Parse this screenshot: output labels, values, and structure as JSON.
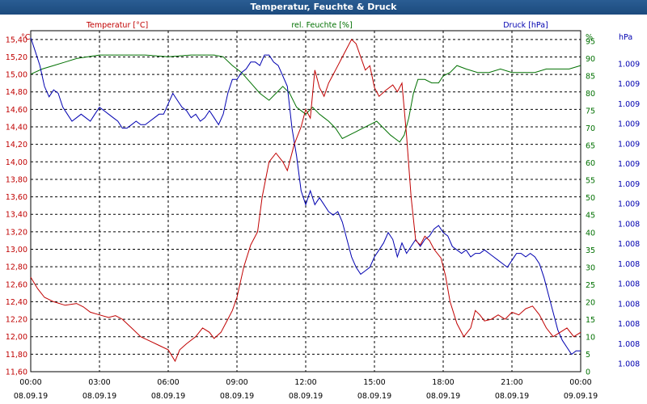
{
  "window": {
    "title": "Temperatur, Feuchte & Druck"
  },
  "colors": {
    "temperature": "#c00000",
    "humidity": "#007000",
    "pressure": "#0000b0",
    "grid": "#000000"
  },
  "chart_data": {
    "type": "line",
    "x_ticks": [
      {
        "time": "00:00",
        "date": "08.09.19"
      },
      {
        "time": "03:00",
        "date": "08.09.19"
      },
      {
        "time": "06:00",
        "date": "08.09.19"
      },
      {
        "time": "09:00",
        "date": "08.09.19"
      },
      {
        "time": "12:00",
        "date": "08.09.19"
      },
      {
        "time": "15:00",
        "date": "08.09.19"
      },
      {
        "time": "18:00",
        "date": "08.09.19"
      },
      {
        "time": "21:00",
        "date": "08.09.19"
      },
      {
        "time": "00:00",
        "date": "09.09.19"
      }
    ],
    "x_range_hours": [
      0,
      24
    ],
    "axes": {
      "left": {
        "title": "Temperatur [°C]",
        "unit": "°C",
        "range": [
          11.6,
          15.5
        ],
        "ticks": [
          "11,60",
          "11,80",
          "12,00",
          "12,20",
          "12,40",
          "12,60",
          "12,80",
          "13,00",
          "13,20",
          "13,40",
          "13,60",
          "13,80",
          "14,00",
          "14,20",
          "14,40",
          "14,60",
          "14,80",
          "15,00",
          "15,20",
          "15,40"
        ]
      },
      "right1": {
        "title": "rel. Feuchte [%]",
        "unit": "%",
        "range": [
          0,
          98
        ],
        "ticks": [
          "0",
          "5",
          "10",
          "15",
          "20",
          "25",
          "30",
          "35",
          "40",
          "45",
          "50",
          "55",
          "60",
          "65",
          "70",
          "75",
          "80",
          "85",
          "90",
          "95"
        ]
      },
      "right2": {
        "title": "Druck [hPa]",
        "unit": "hPa",
        "ticks": [
          "1.008",
          "1.008",
          "1.008",
          "1.008",
          "1.008",
          "1.008",
          "1.008",
          "1.008",
          "1.009",
          "1.009",
          "1.009",
          "1.009",
          "1.009",
          "1.009",
          "1.009",
          "1.009"
        ]
      }
    },
    "grid": true,
    "series": [
      {
        "name": "Temperatur [°C]",
        "points": [
          [
            0,
            12.68
          ],
          [
            0.3,
            12.55
          ],
          [
            0.6,
            12.45
          ],
          [
            1,
            12.4
          ],
          [
            1.5,
            12.36
          ],
          [
            2,
            12.38
          ],
          [
            2.3,
            12.34
          ],
          [
            2.6,
            12.28
          ],
          [
            3,
            12.25
          ],
          [
            3.4,
            12.22
          ],
          [
            3.7,
            12.24
          ],
          [
            4,
            12.2
          ],
          [
            4.4,
            12.1
          ],
          [
            4.8,
            12.0
          ],
          [
            5.2,
            11.95
          ],
          [
            5.6,
            11.9
          ],
          [
            6,
            11.85
          ],
          [
            6.3,
            11.72
          ],
          [
            6.5,
            11.85
          ],
          [
            6.8,
            11.92
          ],
          [
            7.2,
            12.0
          ],
          [
            7.5,
            12.1
          ],
          [
            7.8,
            12.05
          ],
          [
            8.0,
            11.98
          ],
          [
            8.3,
            12.05
          ],
          [
            8.6,
            12.2
          ],
          [
            8.8,
            12.3
          ],
          [
            9.0,
            12.45
          ],
          [
            9.3,
            12.8
          ],
          [
            9.6,
            13.05
          ],
          [
            9.9,
            13.2
          ],
          [
            10.1,
            13.6
          ],
          [
            10.4,
            14.0
          ],
          [
            10.7,
            14.1
          ],
          [
            11.0,
            14.0
          ],
          [
            11.2,
            13.9
          ],
          [
            11.5,
            14.2
          ],
          [
            11.8,
            14.4
          ],
          [
            12.0,
            14.6
          ],
          [
            12.2,
            14.5
          ],
          [
            12.4,
            15.05
          ],
          [
            12.6,
            14.85
          ],
          [
            12.8,
            14.75
          ],
          [
            13.0,
            14.9
          ],
          [
            13.2,
            15.0
          ],
          [
            13.4,
            15.1
          ],
          [
            13.6,
            15.2
          ],
          [
            13.8,
            15.3
          ],
          [
            14.0,
            15.4
          ],
          [
            14.2,
            15.35
          ],
          [
            14.4,
            15.2
          ],
          [
            14.6,
            15.05
          ],
          [
            14.8,
            15.1
          ],
          [
            15.0,
            14.85
          ],
          [
            15.2,
            14.75
          ],
          [
            15.5,
            14.82
          ],
          [
            15.8,
            14.88
          ],
          [
            16.0,
            14.8
          ],
          [
            16.2,
            14.9
          ],
          [
            16.4,
            14.3
          ],
          [
            16.6,
            13.6
          ],
          [
            16.8,
            13.1
          ],
          [
            17.0,
            13.05
          ],
          [
            17.2,
            13.15
          ],
          [
            17.4,
            13.1
          ],
          [
            17.6,
            13.0
          ],
          [
            17.9,
            12.9
          ],
          [
            18.1,
            12.7
          ],
          [
            18.3,
            12.4
          ],
          [
            18.6,
            12.15
          ],
          [
            18.9,
            12.0
          ],
          [
            19.2,
            12.1
          ],
          [
            19.4,
            12.3
          ],
          [
            19.6,
            12.25
          ],
          [
            19.8,
            12.18
          ],
          [
            20.1,
            12.2
          ],
          [
            20.4,
            12.25
          ],
          [
            20.7,
            12.2
          ],
          [
            21.0,
            12.28
          ],
          [
            21.3,
            12.25
          ],
          [
            21.6,
            12.32
          ],
          [
            21.9,
            12.35
          ],
          [
            22.2,
            12.25
          ],
          [
            22.5,
            12.1
          ],
          [
            22.8,
            12.0
          ],
          [
            23.1,
            12.05
          ],
          [
            23.4,
            12.1
          ],
          [
            23.7,
            12.0
          ],
          [
            24.0,
            12.05
          ]
        ]
      },
      {
        "name": "rel. Feuchte [%]",
        "points": [
          [
            0,
            85.5
          ],
          [
            0.5,
            87
          ],
          [
            1,
            88
          ],
          [
            1.5,
            89
          ],
          [
            2,
            90
          ],
          [
            3,
            91
          ],
          [
            4,
            91
          ],
          [
            5,
            91
          ],
          [
            6,
            90.5
          ],
          [
            7,
            91
          ],
          [
            8,
            91
          ],
          [
            8.4,
            90.5
          ],
          [
            8.8,
            88
          ],
          [
            9.2,
            86
          ],
          [
            9.6,
            83
          ],
          [
            10.0,
            80
          ],
          [
            10.4,
            78
          ],
          [
            10.7,
            80
          ],
          [
            11.0,
            82
          ],
          [
            11.3,
            80
          ],
          [
            11.6,
            76
          ],
          [
            12.0,
            74
          ],
          [
            12.3,
            76
          ],
          [
            12.6,
            74
          ],
          [
            12.8,
            73
          ],
          [
            13.0,
            72
          ],
          [
            13.3,
            70
          ],
          [
            13.6,
            67
          ],
          [
            13.9,
            68
          ],
          [
            14.2,
            69
          ],
          [
            14.5,
            70
          ],
          [
            14.8,
            71
          ],
          [
            15.1,
            72
          ],
          [
            15.4,
            70
          ],
          [
            15.7,
            68
          ],
          [
            15.9,
            67
          ],
          [
            16.1,
            66
          ],
          [
            16.3,
            68
          ],
          [
            16.5,
            73
          ],
          [
            16.7,
            80
          ],
          [
            16.9,
            84
          ],
          [
            17.2,
            84
          ],
          [
            17.5,
            83
          ],
          [
            17.8,
            83
          ],
          [
            18.0,
            85
          ],
          [
            18.3,
            86
          ],
          [
            18.6,
            88
          ],
          [
            19.0,
            87
          ],
          [
            19.5,
            86
          ],
          [
            20.0,
            86
          ],
          [
            20.5,
            87
          ],
          [
            21.0,
            86
          ],
          [
            21.5,
            86
          ],
          [
            22.0,
            86
          ],
          [
            22.5,
            87
          ],
          [
            23.0,
            87
          ],
          [
            23.5,
            87
          ],
          [
            24.0,
            88
          ]
        ]
      },
      {
        "name": "Druck [hPa]",
        "points": [
          [
            0,
            96
          ],
          [
            0.2,
            92
          ],
          [
            0.4,
            88
          ],
          [
            0.6,
            82
          ],
          [
            0.8,
            79
          ],
          [
            1.0,
            81
          ],
          [
            1.2,
            80
          ],
          [
            1.4,
            76
          ],
          [
            1.6,
            74
          ],
          [
            1.8,
            72
          ],
          [
            2.0,
            73
          ],
          [
            2.2,
            74
          ],
          [
            2.4,
            73
          ],
          [
            2.6,
            72
          ],
          [
            2.8,
            74
          ],
          [
            3.0,
            76
          ],
          [
            3.2,
            75
          ],
          [
            3.4,
            74
          ],
          [
            3.6,
            73
          ],
          [
            3.8,
            72
          ],
          [
            4.0,
            70
          ],
          [
            4.2,
            70
          ],
          [
            4.4,
            71
          ],
          [
            4.6,
            72
          ],
          [
            4.8,
            71
          ],
          [
            5.0,
            71
          ],
          [
            5.2,
            72
          ],
          [
            5.4,
            73
          ],
          [
            5.6,
            74
          ],
          [
            5.8,
            74
          ],
          [
            6.0,
            77
          ],
          [
            6.2,
            80
          ],
          [
            6.4,
            78
          ],
          [
            6.6,
            76
          ],
          [
            6.8,
            75
          ],
          [
            7.0,
            73
          ],
          [
            7.2,
            74
          ],
          [
            7.4,
            72
          ],
          [
            7.6,
            73
          ],
          [
            7.8,
            75
          ],
          [
            8.0,
            73
          ],
          [
            8.2,
            71
          ],
          [
            8.4,
            74
          ],
          [
            8.6,
            80
          ],
          [
            8.8,
            84
          ],
          [
            9.0,
            84
          ],
          [
            9.2,
            86
          ],
          [
            9.4,
            87
          ],
          [
            9.6,
            89
          ],
          [
            9.8,
            89
          ],
          [
            10.0,
            88
          ],
          [
            10.2,
            91
          ],
          [
            10.4,
            91
          ],
          [
            10.6,
            89
          ],
          [
            10.8,
            88
          ],
          [
            11.0,
            85
          ],
          [
            11.2,
            82
          ],
          [
            11.4,
            70
          ],
          [
            11.6,
            62
          ],
          [
            11.8,
            52
          ],
          [
            12.0,
            48
          ],
          [
            12.2,
            52
          ],
          [
            12.4,
            48
          ],
          [
            12.6,
            50
          ],
          [
            12.8,
            48
          ],
          [
            13.0,
            46
          ],
          [
            13.2,
            45
          ],
          [
            13.4,
            46
          ],
          [
            13.6,
            43
          ],
          [
            13.8,
            38
          ],
          [
            14.0,
            33
          ],
          [
            14.2,
            30
          ],
          [
            14.4,
            28
          ],
          [
            14.6,
            29
          ],
          [
            14.8,
            30
          ],
          [
            15.0,
            33
          ],
          [
            15.2,
            35
          ],
          [
            15.4,
            37
          ],
          [
            15.6,
            40
          ],
          [
            15.8,
            38
          ],
          [
            16.0,
            33
          ],
          [
            16.2,
            37
          ],
          [
            16.4,
            34
          ],
          [
            16.6,
            36
          ],
          [
            16.8,
            38
          ],
          [
            17.0,
            36
          ],
          [
            17.2,
            38
          ],
          [
            17.4,
            39
          ],
          [
            17.6,
            41
          ],
          [
            17.8,
            42
          ],
          [
            18.0,
            40
          ],
          [
            18.2,
            39
          ],
          [
            18.4,
            36
          ],
          [
            18.6,
            35
          ],
          [
            18.8,
            34
          ],
          [
            19.0,
            35
          ],
          [
            19.2,
            33
          ],
          [
            19.4,
            34
          ],
          [
            19.6,
            34
          ],
          [
            19.8,
            35
          ],
          [
            20.0,
            34
          ],
          [
            20.2,
            33
          ],
          [
            20.4,
            32
          ],
          [
            20.6,
            31
          ],
          [
            20.8,
            30
          ],
          [
            21.0,
            32
          ],
          [
            21.2,
            34
          ],
          [
            21.4,
            34
          ],
          [
            21.6,
            33
          ],
          [
            21.8,
            34
          ],
          [
            22.0,
            33
          ],
          [
            22.2,
            31
          ],
          [
            22.4,
            27
          ],
          [
            22.6,
            22
          ],
          [
            22.8,
            17
          ],
          [
            23.0,
            12
          ],
          [
            23.2,
            9
          ],
          [
            23.4,
            7
          ],
          [
            23.6,
            5
          ],
          [
            23.8,
            6
          ],
          [
            24.0,
            6
          ]
        ]
      }
    ]
  }
}
